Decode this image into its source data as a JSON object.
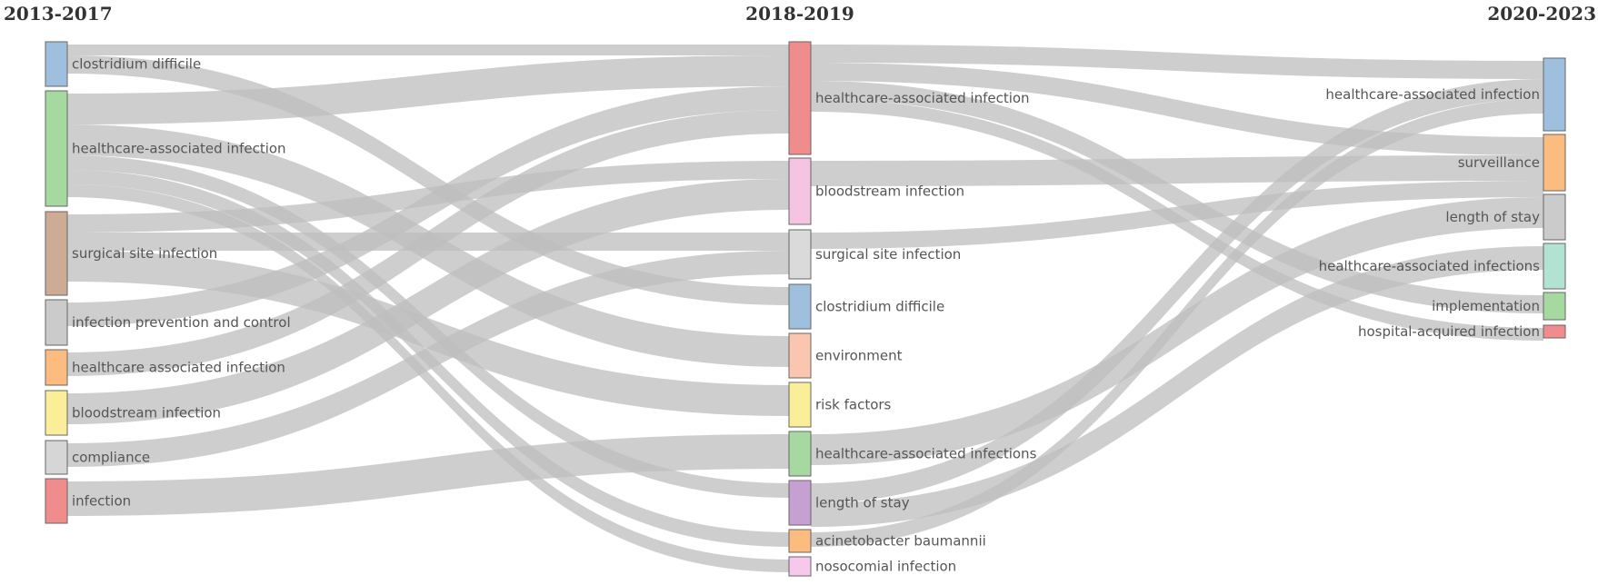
{
  "periods": [
    "2013-2017",
    "2018-2019",
    "2020-2023"
  ],
  "columns": [
    {
      "nodes": [
        {
          "id": "a0",
          "label": "clostridium difficile",
          "color": "#9ec0de"
        },
        {
          "id": "a1",
          "label": "healthcare-associated infection",
          "color": "#a6d9a0"
        },
        {
          "id": "a2",
          "label": "surgical site infection",
          "color": "#ceab95"
        },
        {
          "id": "a3",
          "label": "infection prevention and control",
          "color": "#cbcbcb"
        },
        {
          "id": "a4",
          "label": "healthcare associated infection",
          "color": "#fcbc80"
        },
        {
          "id": "a5",
          "label": "bloodstream infection",
          "color": "#fbee99"
        },
        {
          "id": "a6",
          "label": "compliance",
          "color": "#d6d6d6"
        },
        {
          "id": "a7",
          "label": "infection",
          "color": "#f08c8c"
        }
      ]
    },
    {
      "nodes": [
        {
          "id": "b0",
          "label": "healthcare-associated infection",
          "color": "#f08c8c"
        },
        {
          "id": "b1",
          "label": "bloodstream infection",
          "color": "#f4c4e2"
        },
        {
          "id": "b2",
          "label": "surgical site infection",
          "color": "#dadada"
        },
        {
          "id": "b3",
          "label": "clostridium difficile",
          "color": "#9ec0de"
        },
        {
          "id": "b4",
          "label": "environment",
          "color": "#fbc6b0"
        },
        {
          "id": "b5",
          "label": "risk factors",
          "color": "#fbee99"
        },
        {
          "id": "b6",
          "label": "healthcare-associated infections",
          "color": "#a6d9a0"
        },
        {
          "id": "b7",
          "label": "length of stay",
          "color": "#c7a0d2"
        },
        {
          "id": "b8",
          "label": "acinetobacter baumannii",
          "color": "#fcbc80"
        },
        {
          "id": "b9",
          "label": "nosocomial infection",
          "color": "#f8c8ec"
        }
      ]
    },
    {
      "nodes": [
        {
          "id": "c0",
          "label": "healthcare-associated infection",
          "color": "#9ec0de"
        },
        {
          "id": "c1",
          "label": "surveillance",
          "color": "#fcbc80"
        },
        {
          "id": "c2",
          "label": "length of stay",
          "color": "#cbcbcb"
        },
        {
          "id": "c3",
          "label": "healthcare-associated infections",
          "color": "#b2e2d2"
        },
        {
          "id": "c4",
          "label": "implementation",
          "color": "#a6d9a0"
        },
        {
          "id": "c5",
          "label": "hospital-acquired infection",
          "color": "#f08c8c"
        }
      ]
    }
  ],
  "links": [
    {
      "source": "a0",
      "target": "b0"
    },
    {
      "source": "a0",
      "target": "b3"
    },
    {
      "source": "a1",
      "target": "b0"
    },
    {
      "source": "a1",
      "target": "b4"
    },
    {
      "source": "a1",
      "target": "b7"
    },
    {
      "source": "a1",
      "target": "b8"
    },
    {
      "source": "a2",
      "target": "b1"
    },
    {
      "source": "a2",
      "target": "b2"
    },
    {
      "source": "a2",
      "target": "b5"
    },
    {
      "source": "a3",
      "target": "b0"
    },
    {
      "source": "a4",
      "target": "b0"
    },
    {
      "source": "a5",
      "target": "b1"
    },
    {
      "source": "a6",
      "target": "b2"
    },
    {
      "source": "a7",
      "target": "b6"
    },
    {
      "source": "a1",
      "target": "b9"
    },
    {
      "source": "b0",
      "target": "c0"
    },
    {
      "source": "b0",
      "target": "c1"
    },
    {
      "source": "b0",
      "target": "c4"
    },
    {
      "source": "b0",
      "target": "c5"
    },
    {
      "source": "b1",
      "target": "c1"
    },
    {
      "source": "b2",
      "target": "c1"
    },
    {
      "source": "b6",
      "target": "c2"
    },
    {
      "source": "b7",
      "target": "c0"
    },
    {
      "source": "b7",
      "target": "c3"
    },
    {
      "source": "b8",
      "target": "c0"
    }
  ]
}
